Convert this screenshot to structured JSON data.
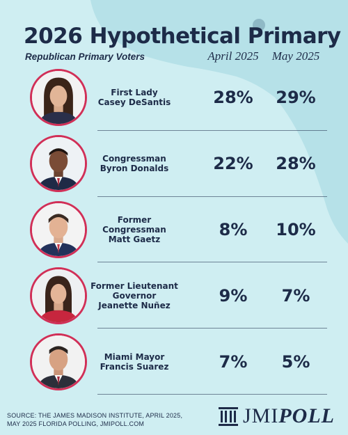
{
  "header": {
    "title": "2026 Hypothetical Primary",
    "subtitle": "Republican Primary Voters",
    "columns": [
      "April 2025",
      "May 2025"
    ]
  },
  "candidates": [
    {
      "name_lines": [
        "First Lady",
        "Casey DeSantis"
      ],
      "april": "28%",
      "may": "29%"
    },
    {
      "name_lines": [
        "Congressman",
        "Byron Donalds"
      ],
      "april": "22%",
      "may": "28%"
    },
    {
      "name_lines": [
        "Former",
        "Congressman",
        "Matt Gaetz"
      ],
      "april": "8%",
      "may": "10%"
    },
    {
      "name_lines": [
        "Former Lieutenant",
        "Governor",
        "Jeanette Nuñez"
      ],
      "april": "9%",
      "may": "7%"
    },
    {
      "name_lines": [
        "Miami Mayor",
        "Francis Suarez"
      ],
      "april": "7%",
      "may": "5%"
    }
  ],
  "footer": {
    "source": "SOURCE: THE JAMES MADISON INSTITUTE, APRIL 2025, MAY 2025 FLORIDA POLLING, JMIPOLL.COM",
    "logo_left": "JMI",
    "logo_right": "POLL"
  },
  "colors": {
    "background": "#cfeef2",
    "map": "#b6e1e8",
    "text": "#1d2b48",
    "accent_ring": "#d12f57"
  }
}
